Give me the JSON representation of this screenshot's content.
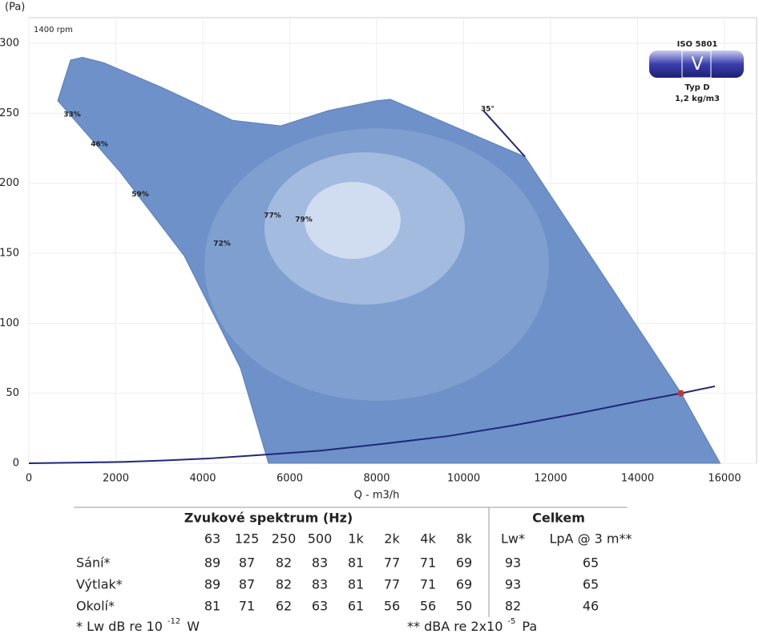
{
  "chart_data": {
    "type": "line",
    "y_label": "(Pa)",
    "x_label": "Q - m3/h",
    "speed_label": "1400 rpm",
    "xlim": [
      0,
      16000
    ],
    "ylim": [
      0,
      300
    ],
    "xticks": [
      0,
      2000,
      4000,
      6000,
      8000,
      10000,
      12000,
      14000,
      16000
    ],
    "yticks": [
      0,
      50,
      100,
      150,
      200,
      250,
      300
    ],
    "grid": true,
    "series": [
      {
        "color": "#6d91c8",
        "fill": true,
        "x": [
          664,
          959,
          1235,
          1733,
          3023,
          4682,
          5788,
          6894,
          8000,
          8313,
          11410,
          15005,
          15558,
          15900,
          5511,
          4866,
          3576,
          2101,
          664
        ],
        "values": [
          259,
          288,
          290,
          286,
          269,
          245,
          241,
          252,
          259,
          260,
          219,
          50,
          19,
          0,
          0,
          68,
          148,
          208,
          259
        ]
      },
      {
        "color": "#1f2878",
        "fill": false,
        "x": [
          0,
          1364,
          2194,
          3115,
          4129,
          5235,
          6710,
          8184,
          9659,
          11134,
          12608,
          14083,
          15005,
          15779
        ],
        "values": [
          0,
          0.6,
          1,
          2,
          3.4,
          5.7,
          9,
          14,
          19.5,
          27,
          35.5,
          44.7,
          50,
          55
        ]
      },
      {
        "color": "#1f2878",
        "fill": false,
        "x": [
          10452,
          11410
        ],
        "values": [
          252,
          219
        ]
      }
    ],
    "points": [
      {
        "x": 15000,
        "y": 50,
        "color": "#c0392b"
      }
    ],
    "annotations": [
      {
        "text": "33%",
        "x": 995,
        "y": 249
      },
      {
        "text": "46%",
        "x": 1622,
        "y": 228
      },
      {
        "text": "59%",
        "x": 2562,
        "y": 192
      },
      {
        "text": "72%",
        "x": 4442,
        "y": 157
      },
      {
        "text": "77%",
        "x": 5604,
        "y": 177
      },
      {
        "text": "79%",
        "x": 6323,
        "y": 174
      },
      {
        "text": "35°",
        "x": 10550,
        "y": 253
      }
    ],
    "badge": {
      "standard": "ISO 5801",
      "symbol": "V",
      "type": "Typ D",
      "density": "1,2 kg/m3"
    }
  },
  "table": {
    "group_spectrum": "Zvukové spektrum (Hz)",
    "group_total": "Celkem",
    "columns": [
      "63",
      "125",
      "250",
      "500",
      "1k",
      "2k",
      "4k",
      "8k",
      "Lw*",
      "LpA @ 3 m**"
    ],
    "rows": [
      {
        "label": "Sání*",
        "values": [
          "89",
          "87",
          "82",
          "83",
          "81",
          "77",
          "71",
          "69",
          "93",
          "65"
        ]
      },
      {
        "label": "Výtlak*",
        "values": [
          "89",
          "87",
          "82",
          "83",
          "81",
          "77",
          "71",
          "69",
          "93",
          "65"
        ]
      },
      {
        "label": "Okolí*",
        "values": [
          "81",
          "71",
          "62",
          "63",
          "61",
          "56",
          "56",
          "50",
          "82",
          "46"
        ]
      }
    ],
    "notes": [
      [
        "* Lw dB re 10",
        "-12",
        "W"
      ],
      [
        "** dBA re 2x10",
        "-5",
        "Pa"
      ]
    ]
  }
}
